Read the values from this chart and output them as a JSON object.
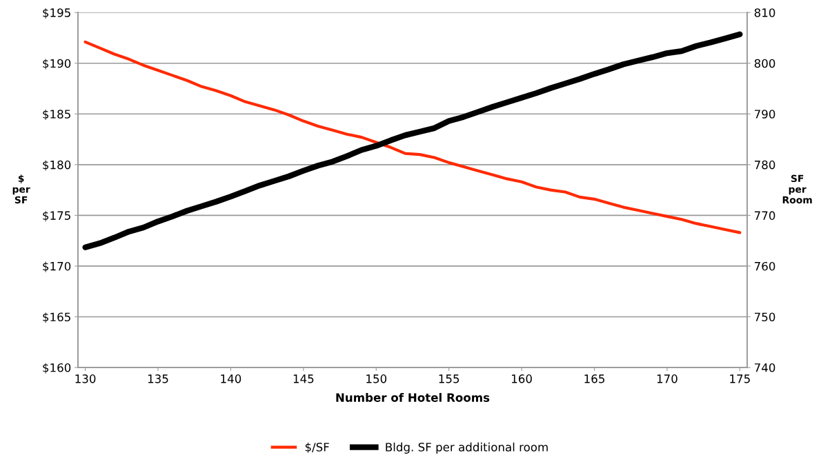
{
  "chart_data": {
    "type": "line",
    "xlabel": "Number of Hotel Rooms",
    "ylabel": "$ per SF",
    "y2label": "SF per Room",
    "categories": [
      "130",
      null,
      null,
      null,
      null,
      "135",
      null,
      null,
      null,
      null,
      "140",
      null,
      null,
      null,
      null,
      "145",
      null,
      null,
      null,
      null,
      "150",
      null,
      null,
      null,
      null,
      "155",
      null,
      null,
      null,
      null,
      "160",
      null,
      null,
      null,
      null,
      "165",
      null,
      null,
      null,
      null,
      "170",
      null,
      null,
      null,
      null,
      "175"
    ],
    "series": [
      {
        "name": "$/SF",
        "color": "#ff2a00",
        "values": [
          192.1,
          191.5,
          190.9,
          190.4,
          189.8,
          189.3,
          188.8,
          188.3,
          187.7,
          187.3,
          186.8,
          186.2,
          185.8,
          185.4,
          184.9,
          184.3,
          183.8,
          183.4,
          183.0,
          182.7,
          182.2,
          181.7,
          181.1,
          181.0,
          180.7,
          180.2,
          179.8,
          179.4,
          179.0,
          178.6,
          178.3,
          177.8,
          177.5,
          177.3,
          176.8,
          176.6,
          176.2,
          175.8,
          175.5,
          175.2,
          174.9,
          174.6,
          174.2,
          173.9,
          173.6,
          173.3
        ]
      },
      {
        "name": "Bldg. SF per additional room",
        "color": "#000000",
        "axis": "y2",
        "values": [
          763.7,
          764.5,
          765.6,
          766.8,
          767.6,
          768.8,
          769.8,
          770.9,
          771.8,
          772.7,
          773.7,
          774.8,
          775.9,
          776.8,
          777.7,
          778.8,
          779.8,
          780.6,
          781.7,
          782.9,
          783.7,
          784.8,
          785.8,
          786.5,
          787.2,
          788.6,
          789.4,
          790.4,
          791.4,
          792.3,
          793.2,
          794.1,
          795.1,
          796.0,
          796.9,
          797.9,
          798.8,
          799.8,
          800.5,
          801.2,
          802.0,
          802.4,
          803.4,
          804.1,
          804.9,
          805.7
        ]
      }
    ],
    "ylim": [
      160,
      195
    ],
    "yticks": [
      {
        "value": 160,
        "label": "$160"
      },
      {
        "value": 165,
        "label": "$165"
      },
      {
        "value": 170,
        "label": "$170"
      },
      {
        "value": 175,
        "label": "$175"
      },
      {
        "value": 180,
        "label": "$180"
      },
      {
        "value": 185,
        "label": "$185"
      },
      {
        "value": 190,
        "label": "$190"
      },
      {
        "value": 195,
        "label": "$195"
      }
    ],
    "y2lim": [
      740,
      810
    ],
    "y2ticks": [
      740,
      750,
      760,
      770,
      780,
      790,
      800,
      810
    ],
    "grid": "y",
    "legend": "bottom",
    "marker": "none",
    "line_style": "solid"
  }
}
